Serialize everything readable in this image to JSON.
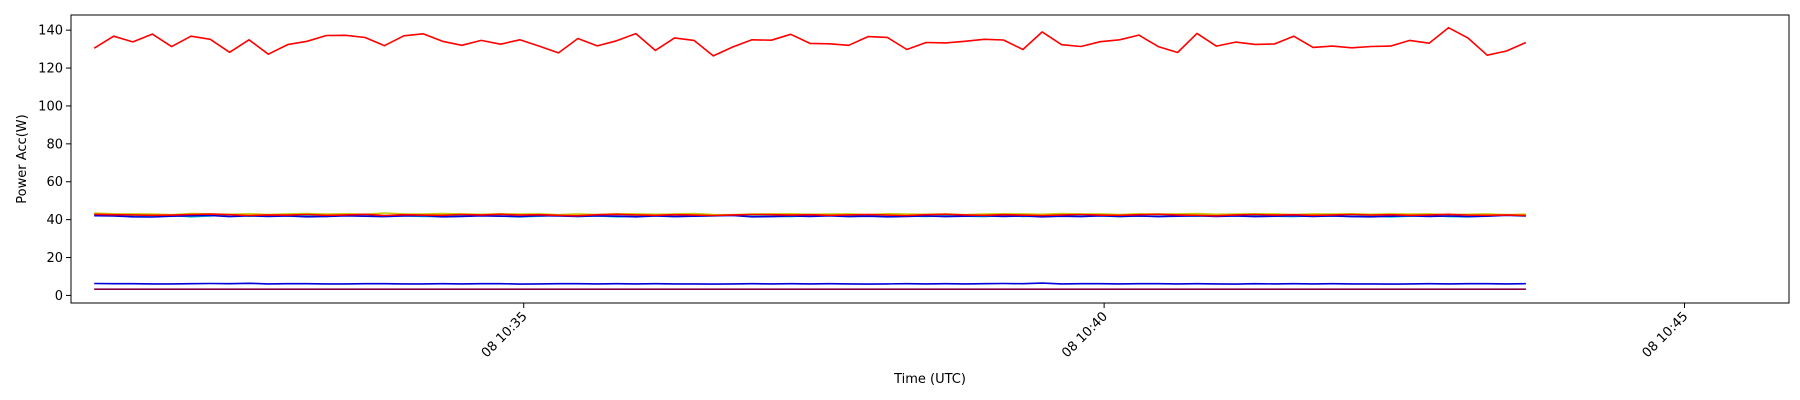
{
  "chart_data": {
    "type": "line",
    "xlabel": "Time (UTC)",
    "ylabel": "Power Acc(W)",
    "x_start": "2024-01-08 10:31:18",
    "x_step_seconds": 10,
    "xlim": [
      "2024-01-08 10:31:06",
      "2024-01-08 10:45:54"
    ],
    "ylim": [
      -4,
      148
    ],
    "xticks": [
      {
        "value": "2024-01-08 10:35:00",
        "label": "08 10:35"
      },
      {
        "value": "2024-01-08 10:40:00",
        "label": "08 10:40"
      },
      {
        "value": "2024-01-08 10:45:00",
        "label": "08 10:45"
      }
    ],
    "yticks": [
      0,
      20,
      40,
      60,
      80,
      100,
      120,
      140
    ],
    "grid": false,
    "series": [
      {
        "color": "#ff0000",
        "values": [
          130.5,
          136.8,
          133.8,
          137.9,
          131.3,
          136.8,
          135.2,
          128.3,
          134.9,
          127.3,
          132.4,
          134.1,
          137.2,
          137.3,
          136.1,
          131.8,
          137.0,
          138.1,
          134.1,
          132.0,
          134.6,
          132.6,
          134.9,
          131.6,
          128.0,
          135.6,
          131.7,
          134.4,
          138.2,
          129.3,
          135.9,
          134.6,
          126.4,
          131.1,
          134.9,
          134.7,
          137.8,
          133.0,
          132.8,
          132.0,
          136.6,
          136.2,
          129.8,
          133.5,
          133.3,
          134.1,
          135.2,
          134.8,
          129.8,
          139.1,
          132.3,
          131.4,
          133.9,
          134.9,
          137.4,
          131.3,
          128.2,
          138.3,
          131.6,
          133.7,
          132.5,
          132.7,
          136.8,
          130.9,
          131.6,
          130.7,
          131.4,
          131.6,
          134.6,
          133.1,
          141.3,
          135.9,
          126.8,
          129.0,
          133.5
        ]
      },
      {
        "color": "#00cccc",
        "values": [
          42.4,
          42.1,
          41.8,
          41.6,
          42.3,
          41.5,
          41.9,
          42.6,
          41.8,
          42.2,
          42.0,
          42.1,
          41.7,
          42.3,
          41.9,
          42.2,
          42.0,
          41.7,
          41.6,
          42.1,
          42.3,
          41.9,
          41.5,
          41.8,
          42.4,
          41.7,
          41.9,
          41.5,
          41.8,
          42.2,
          41.6,
          41.9,
          42.0,
          42.5,
          41.8,
          41.7,
          41.6,
          42.1,
          42.3,
          41.8,
          42.0,
          41.6,
          41.9,
          41.7,
          42.1,
          41.8,
          41.6,
          42.2,
          41.7,
          41.9,
          42.3,
          41.8,
          42.0,
          41.6,
          41.9,
          41.7,
          42.1,
          41.8,
          42.4,
          41.9,
          42.0,
          41.8,
          41.6,
          42.1,
          41.9,
          41.7,
          42.0,
          41.4,
          41.8,
          42.2,
          41.6,
          41.5,
          41.9,
          42.6,
          42.0
        ]
      },
      {
        "color": "#cccc00",
        "values": [
          43.4,
          43.1,
          43.0,
          42.9,
          42.6,
          43.2,
          43.0,
          42.8,
          43.1,
          42.7,
          43.0,
          43.2,
          42.9,
          43.1,
          42.8,
          43.5,
          43.0,
          42.9,
          43.2,
          43.0,
          42.8,
          43.1,
          42.9,
          43.0,
          42.6,
          43.0,
          42.7,
          43.1,
          43.0,
          42.8,
          42.9,
          43.2,
          42.7,
          42.6,
          42.9,
          43.0,
          43.1,
          42.8,
          42.9,
          43.0,
          42.7,
          43.1,
          42.9,
          42.8,
          43.0,
          42.6,
          42.9,
          43.1,
          43.0,
          42.8,
          43.2,
          42.9,
          43.0,
          42.7,
          43.1,
          42.9,
          43.0,
          43.2,
          42.8,
          42.9,
          43.1,
          43.0,
          42.7,
          43.0,
          42.9,
          43.1,
          42.8,
          43.0,
          42.9,
          43.0,
          42.6,
          42.8,
          43.0,
          42.6,
          42.9
        ]
      },
      {
        "color": "#0000dd",
        "values": [
          42.1,
          41.9,
          41.5,
          41.4,
          41.8,
          42.0,
          42.2,
          41.6,
          42.0,
          41.7,
          41.9,
          41.5,
          41.7,
          42.0,
          41.8,
          41.6,
          41.9,
          42.1,
          41.5,
          41.7,
          42.0,
          41.8,
          41.6,
          42.1,
          41.9,
          41.7,
          42.0,
          41.8,
          41.5,
          41.9,
          41.6,
          41.8,
          42.0,
          42.2,
          41.5,
          41.6,
          41.9,
          41.7,
          42.0,
          41.6,
          41.8,
          41.5,
          41.7,
          41.9,
          41.6,
          41.8,
          42.0,
          41.7,
          41.9,
          41.5,
          41.8,
          41.6,
          42.0,
          41.7,
          41.9,
          41.6,
          41.8,
          42.0,
          41.7,
          41.9,
          41.6,
          41.8,
          42.0,
          41.7,
          41.9,
          41.6,
          41.5,
          41.8,
          42.0,
          41.7,
          41.9,
          41.6,
          41.8,
          42.3,
          41.9
        ]
      },
      {
        "color": "#ff0000",
        "values": [
          42.8,
          42.6,
          42.5,
          42.3,
          42.4,
          42.7,
          42.9,
          42.6,
          42.2,
          42.5,
          42.4,
          42.7,
          42.3,
          42.5,
          42.8,
          42.2,
          42.6,
          42.4,
          42.3,
          42.7,
          42.5,
          42.8,
          42.4,
          42.6,
          42.3,
          42.1,
          42.6,
          42.8,
          42.5,
          42.3,
          42.6,
          42.4,
          42.2,
          42.5,
          42.7,
          42.6,
          42.4,
          42.6,
          42.3,
          42.5,
          42.7,
          42.4,
          42.2,
          42.6,
          42.8,
          42.5,
          42.3,
          42.6,
          42.4,
          42.2,
          42.5,
          42.7,
          42.4,
          42.3,
          42.6,
          42.8,
          42.5,
          42.3,
          42.1,
          42.5,
          42.7,
          42.4,
          42.6,
          42.3,
          42.5,
          42.7,
          42.4,
          42.6,
          42.3,
          42.5,
          42.8,
          42.4,
          42.3,
          42.5,
          42.2
        ]
      },
      {
        "color": "#0000dd",
        "values": [
          6.3,
          6.2,
          6.2,
          6.1,
          6.1,
          6.2,
          6.3,
          6.2,
          6.4,
          6.1,
          6.2,
          6.2,
          6.1,
          6.1,
          6.2,
          6.2,
          6.1,
          6.1,
          6.2,
          6.1,
          6.2,
          6.2,
          6.0,
          6.1,
          6.2,
          6.2,
          6.1,
          6.2,
          6.1,
          6.2,
          6.1,
          6.1,
          6.0,
          6.1,
          6.2,
          6.1,
          6.2,
          6.1,
          6.2,
          6.1,
          6.0,
          6.1,
          6.2,
          6.1,
          6.2,
          6.1,
          6.2,
          6.3,
          6.2,
          6.5,
          6.1,
          6.2,
          6.2,
          6.1,
          6.2,
          6.2,
          6.1,
          6.2,
          6.1,
          6.0,
          6.2,
          6.1,
          6.2,
          6.1,
          6.2,
          6.1,
          6.1,
          6.0,
          6.1,
          6.2,
          6.1,
          6.2,
          6.2,
          6.1,
          6.2
        ]
      },
      {
        "color": "#880044",
        "values": [
          3.3,
          3.3,
          3.3,
          3.3,
          3.3,
          3.3,
          3.3,
          3.3,
          3.3,
          3.3,
          3.3,
          3.3,
          3.3,
          3.3,
          3.3,
          3.3,
          3.3,
          3.3,
          3.3,
          3.3,
          3.3,
          3.3,
          3.3,
          3.3,
          3.3,
          3.3,
          3.3,
          3.3,
          3.3,
          3.3,
          3.3,
          3.3,
          3.3,
          3.3,
          3.3,
          3.3,
          3.3,
          3.3,
          3.3,
          3.3,
          3.3,
          3.3,
          3.3,
          3.3,
          3.3,
          3.3,
          3.3,
          3.3,
          3.3,
          3.3,
          3.3,
          3.3,
          3.3,
          3.3,
          3.3,
          3.3,
          3.3,
          3.3,
          3.3,
          3.3,
          3.3,
          3.3,
          3.3,
          3.3,
          3.3,
          3.3,
          3.3,
          3.3,
          3.3,
          3.3,
          3.3,
          3.3,
          3.3,
          3.3,
          3.3
        ]
      }
    ]
  }
}
